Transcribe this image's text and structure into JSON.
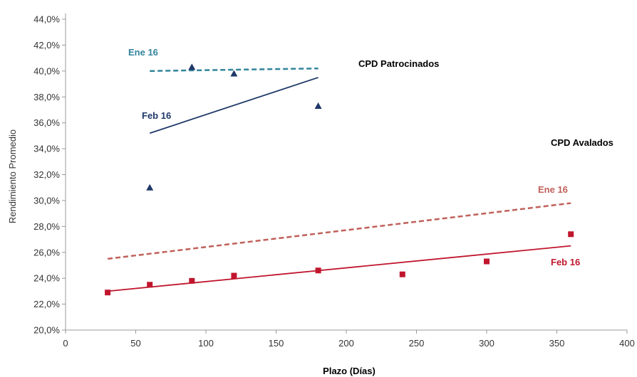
{
  "chart_data": {
    "type": "scatter",
    "title": "",
    "xlabel": "Plazo (Días)",
    "ylabel": "Rendimiento  Promedio",
    "xlim": [
      0,
      400
    ],
    "ylim": [
      20,
      44
    ],
    "x_ticks": [
      0,
      50,
      100,
      150,
      200,
      250,
      300,
      350,
      400
    ],
    "x_tick_labels": [
      "0",
      "50",
      "100",
      "150",
      "200",
      "250",
      "300",
      "350",
      "400"
    ],
    "y_ticks": [
      20,
      22,
      24,
      26,
      28,
      30,
      32,
      34,
      36,
      38,
      40,
      42,
      44
    ],
    "y_tick_labels": [
      "20,0%",
      "22,0%",
      "24,0%",
      "26,0%",
      "28,0%",
      "30,0%",
      "32,0%",
      "34,0%",
      "36,0%",
      "38,0%",
      "40,0%",
      "42,0%",
      "44,0%"
    ],
    "grid": false,
    "series": [
      {
        "group": "CPD Patrocinados",
        "label": "Feb 16",
        "marker": "triangle",
        "color": "#1f3868",
        "points": [
          {
            "x": 60,
            "y": 31.0
          },
          {
            "x": 90,
            "y": 40.3
          },
          {
            "x": 120,
            "y": 39.8
          },
          {
            "x": 180,
            "y": 37.3
          }
        ]
      },
      {
        "group": "CPD Avalados",
        "label": "Feb 16",
        "marker": "square",
        "color": "#c0162d",
        "points": [
          {
            "x": 30,
            "y": 22.9
          },
          {
            "x": 60,
            "y": 23.5
          },
          {
            "x": 90,
            "y": 23.8
          },
          {
            "x": 120,
            "y": 24.2
          },
          {
            "x": 180,
            "y": 24.6
          },
          {
            "x": 240,
            "y": 24.3
          },
          {
            "x": 300,
            "y": 25.3
          },
          {
            "x": 360,
            "y": 27.4
          }
        ]
      }
    ],
    "trendlines": [
      {
        "group": "CPD Patrocinados",
        "label": "Ene 16",
        "style": "dashed",
        "color": "#31849b",
        "x": [
          60,
          180
        ],
        "y": [
          40.0,
          40.2
        ]
      },
      {
        "group": "CPD Patrocinados",
        "label": "Feb 16",
        "style": "solid",
        "color": "#1f3868",
        "x": [
          60,
          180
        ],
        "y": [
          35.2,
          39.5
        ]
      },
      {
        "group": "CPD Avalados",
        "label": "Ene 16",
        "style": "dashed",
        "color": "#c0605a",
        "x": [
          30,
          360
        ],
        "y": [
          25.5,
          29.8
        ]
      },
      {
        "group": "CPD Avalados",
        "label": "Feb 16",
        "style": "solid",
        "color": "#c0162d",
        "x": [
          30,
          360
        ],
        "y": [
          23.0,
          26.5
        ]
      }
    ],
    "annotations": [
      {
        "text": "CPD Patrocinados",
        "color": "#000000"
      },
      {
        "text": "CPD Avalados",
        "color": "#000000"
      },
      {
        "text": "Ene 16",
        "color": "#31849b"
      },
      {
        "text": "Feb 16",
        "color": "#1f3868"
      },
      {
        "text": "Ene 16",
        "color": "#c0605a"
      },
      {
        "text": "Feb 16",
        "color": "#c0162d"
      }
    ]
  }
}
